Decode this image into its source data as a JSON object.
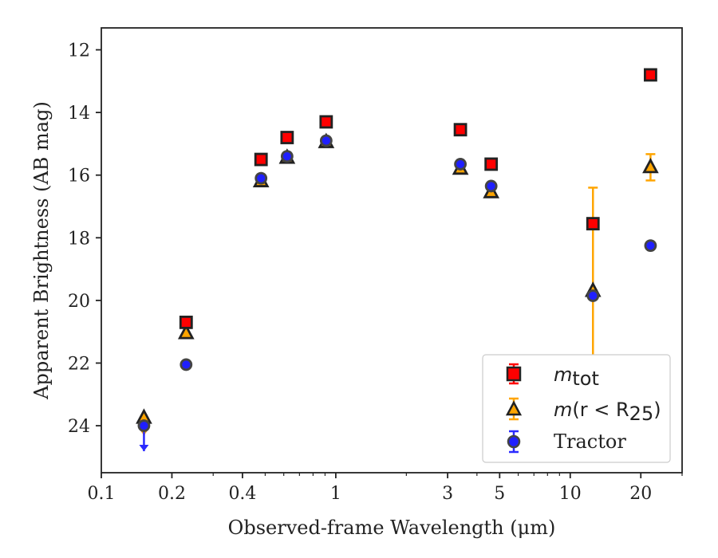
{
  "chart_data": {
    "type": "scatter",
    "xlabel": "Observed-frame Wavelength (μm)",
    "ylabel": "Apparent Brightness (AB mag)",
    "x_scale": "log",
    "xlim": [
      0.1,
      30
    ],
    "ylim": [
      25.5,
      11.3
    ],
    "y_inverted": true,
    "x_ticks": [
      0.1,
      0.2,
      0.4,
      1,
      3,
      5,
      10,
      20
    ],
    "x_tick_labels": [
      "0.1",
      "0.2",
      "0.4",
      "1",
      "3",
      "5",
      "10",
      "20"
    ],
    "y_ticks": [
      12,
      14,
      16,
      18,
      20,
      22,
      24
    ],
    "y_tick_labels": [
      "12",
      "14",
      "16",
      "18",
      "20",
      "22",
      "24"
    ],
    "grid": false,
    "legend_position": "bottom-right",
    "legend_labels": {
      "mtot_base": "m",
      "mtot_sub": "tot",
      "mr25_base": "m",
      "mr25_mid": "(r < R",
      "mr25_sub": "25",
      "mr25_end": ")",
      "tractor": "Tractor"
    },
    "series": [
      {
        "name": "m_tot",
        "marker": "square",
        "color": "#ff0000",
        "edge_color": "#222222",
        "err_color": "#ff0000",
        "points": [
          {
            "x": 0.23,
            "y": 20.7,
            "err": 0
          },
          {
            "x": 0.48,
            "y": 15.5,
            "err": 0
          },
          {
            "x": 0.62,
            "y": 14.8,
            "err": 0
          },
          {
            "x": 0.91,
            "y": 14.3,
            "err": 0
          },
          {
            "x": 3.4,
            "y": 14.55,
            "err": 0
          },
          {
            "x": 4.6,
            "y": 15.65,
            "err": 0
          },
          {
            "x": 12.5,
            "y": 17.55,
            "err": 0
          },
          {
            "x": 22.0,
            "y": 12.8,
            "err": 0
          }
        ]
      },
      {
        "name": "m(r < R25)",
        "marker": "triangle",
        "color": "#ffa500",
        "edge_color": "#222222",
        "err_color": "#ffa500",
        "points": [
          {
            "x": 0.152,
            "y": 23.75,
            "err": 0,
            "upper_limit": true
          },
          {
            "x": 0.23,
            "y": 21.05,
            "err": 0
          },
          {
            "x": 0.48,
            "y": 16.2,
            "err": 0
          },
          {
            "x": 0.62,
            "y": 15.45,
            "err": 0
          },
          {
            "x": 0.91,
            "y": 14.95,
            "err": 0
          },
          {
            "x": 3.4,
            "y": 15.8,
            "err": 0
          },
          {
            "x": 4.6,
            "y": 16.55,
            "err": 0
          },
          {
            "x": 12.5,
            "y": 19.7,
            "err": 3.3
          },
          {
            "x": 22.0,
            "y": 15.75,
            "err": 0.42
          }
        ]
      },
      {
        "name": "Tractor",
        "marker": "circle",
        "color": "#1f1fff",
        "edge_color": "#444444",
        "err_color": "#2a2aff",
        "points": [
          {
            "x": 0.152,
            "y": 24.0,
            "err": 0,
            "upper_limit": true
          },
          {
            "x": 0.23,
            "y": 22.05,
            "err": 0
          },
          {
            "x": 0.48,
            "y": 16.1,
            "err": 0
          },
          {
            "x": 0.62,
            "y": 15.4,
            "err": 0
          },
          {
            "x": 0.91,
            "y": 14.9,
            "err": 0
          },
          {
            "x": 3.4,
            "y": 15.65,
            "err": 0
          },
          {
            "x": 4.6,
            "y": 16.35,
            "err": 0
          },
          {
            "x": 12.5,
            "y": 19.85,
            "err": 0
          },
          {
            "x": 22.0,
            "y": 18.25,
            "err": 0
          }
        ]
      }
    ]
  }
}
